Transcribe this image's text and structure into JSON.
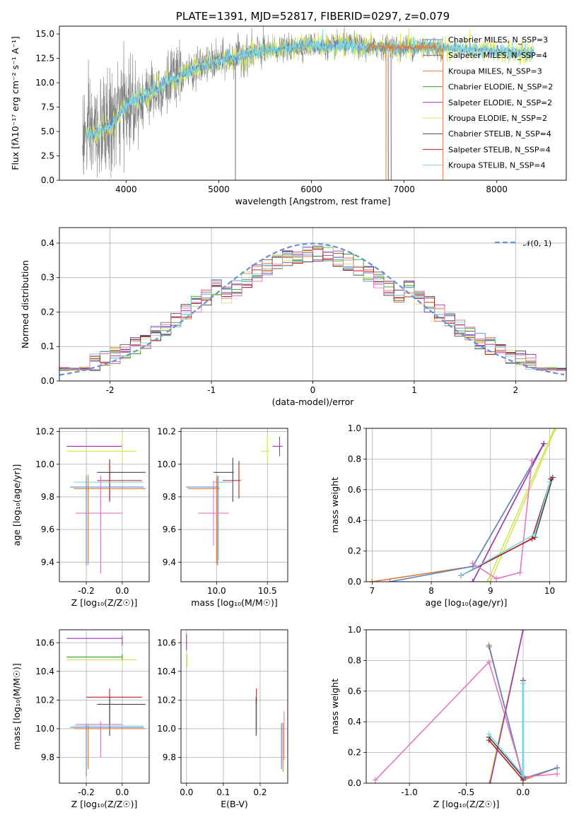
{
  "colors": {
    "chabrier_miles": "#5b86c5",
    "salpeter_miles": "#8c564b",
    "kroupa_miles": "#e07b39",
    "chabrier_elodie": "#2ca02c",
    "salpeter_elodie": "#9b30b0",
    "kroupa_elodie": "#d7e35a",
    "chabrier_stelib": "#444444",
    "salpeter_stelib": "#b22222",
    "kroupa_stelib": "#7fd6e0",
    "pink": "#e377c2",
    "data_gray": "#808080",
    "normal_curve": "#6a8fd6"
  },
  "chart_data": [
    {
      "id": "spectrum",
      "type": "line",
      "title": "PLATE=1391, MJD=52817, FIBERID=0297, z=0.079",
      "xlabel": "wavelength [Angstrom, rest frame]",
      "ylabel": "Flux [fλ10⁻¹⁷ erg cm⁻² s⁻¹ A⁻¹]",
      "xlim": [
        3280,
        8750
      ],
      "ylim": [
        0,
        15.8
      ],
      "xticks": [
        4000,
        5000,
        6000,
        7000,
        8000
      ],
      "yticks": [
        0.0,
        2.5,
        5.0,
        7.5,
        10.0,
        12.5,
        15.0
      ],
      "legend_position": "upper-right",
      "legend": [
        "Chabrier MILES, N_SSP=3",
        "Salpeter MILES, N_SSP=4",
        "Kroupa MILES, N_SSP=3",
        "Chabrier ELODIE, N_SSP=2",
        "Salpeter ELODIE, N_SSP=2",
        "Kroupa ELODIE, N_SSP=2",
        "Chabrier STELIB, N_SSP=4",
        "Salpeter STELIB, N_SSP=4",
        "Kroupa STELIB, N_SSP=4"
      ],
      "continuum": {
        "x": [
          3550,
          3700,
          3850,
          3950,
          4050,
          4200,
          4400,
          4600,
          4800,
          5000,
          5200,
          5400,
          5600,
          5800,
          6000,
          6200,
          6400,
          6600,
          6800,
          7000,
          7200,
          7400,
          7600,
          7800,
          8000,
          8200,
          8400
        ],
        "y": [
          4.5,
          5.0,
          5.8,
          7.2,
          8.0,
          8.6,
          9.8,
          10.8,
          11.7,
          12.2,
          12.7,
          13.1,
          13.4,
          13.6,
          13.9,
          13.7,
          13.9,
          13.6,
          13.7,
          13.6,
          13.7,
          13.6,
          13.4,
          13.3,
          13.2,
          13.1,
          13.0
        ]
      }
    },
    {
      "id": "residuals",
      "type": "histogram",
      "xlabel": "(data-model)/error",
      "ylabel": "Normed distribution",
      "xlim": [
        -2.5,
        2.5
      ],
      "ylim": [
        0,
        0.445
      ],
      "xticks": [
        -2,
        -1,
        0,
        1,
        2
      ],
      "yticks": [
        0.0,
        0.1,
        0.2,
        0.3,
        0.4
      ],
      "legend": [
        "𝒩(0, 1)"
      ],
      "legend_position": "upper-right",
      "bin_width": 0.1
    },
    {
      "id": "age_vs_Z",
      "type": "errorbar",
      "xlabel": "Z [log₁₀(Z/Z☉)]",
      "ylabel": "age  [log₁₀(age/yr)]",
      "xlim": [
        -0.35,
        0.15
      ],
      "ylim": [
        9.28,
        10.22
      ],
      "xticks": [
        -0.2,
        0.0
      ],
      "yticks": [
        9.4,
        9.6,
        9.8,
        10.0,
        10.2
      ],
      "points": [
        {
          "c": "salpeter_elodie",
          "x": 0.0,
          "y": 10.11,
          "xlo": -0.31,
          "xhi": 0.0,
          "ylo": 10.09,
          "yhi": 10.13
        },
        {
          "c": "kroupa_elodie",
          "x": 0.0,
          "y": 10.08,
          "xlo": -0.31,
          "xhi": 0.08,
          "ylo": 10.0,
          "yhi": 10.19
        },
        {
          "c": "chabrier_stelib",
          "x": -0.07,
          "y": 9.95,
          "xlo": -0.14,
          "xhi": 0.13,
          "ylo": 9.78,
          "yhi": 10.03
        },
        {
          "c": "salpeter_stelib",
          "x": -0.07,
          "y": 9.9,
          "xlo": -0.14,
          "xhi": 0.11,
          "ylo": 9.77,
          "yhi": 10.02
        },
        {
          "c": "kroupa_stelib",
          "x": -0.19,
          "y": 9.89,
          "xlo": -0.27,
          "xhi": 0.12,
          "ylo": 9.38,
          "yhi": 9.94
        },
        {
          "c": "chabrier_miles",
          "x": -0.2,
          "y": 9.86,
          "xlo": -0.29,
          "xhi": 0.12,
          "ylo": 9.38,
          "yhi": 9.93
        },
        {
          "c": "kroupa_miles",
          "x": -0.19,
          "y": 9.85,
          "xlo": -0.27,
          "xhi": 0.13,
          "ylo": 9.39,
          "yhi": 9.93
        },
        {
          "c": "pink",
          "x": -0.12,
          "y": 9.7,
          "xlo": -0.26,
          "xhi": 0.0,
          "ylo": 9.33,
          "yhi": 9.93
        }
      ]
    },
    {
      "id": "age_vs_mass",
      "type": "errorbar",
      "xlabel": "mass [log₁₀(M/M☉)]",
      "ylabel": "",
      "xlim": [
        9.65,
        10.7
      ],
      "ylim": [
        9.28,
        10.22
      ],
      "xticks": [
        10.0,
        10.5
      ],
      "yticks": [
        9.4,
        9.6,
        9.8,
        10.0,
        10.2
      ],
      "points": [
        {
          "c": "salpeter_elodie",
          "x": 10.62,
          "y": 10.11,
          "xlo": 10.55,
          "xhi": 10.65,
          "ylo": 10.05,
          "yhi": 10.17
        },
        {
          "c": "kroupa_elodie",
          "x": 10.5,
          "y": 10.08,
          "xlo": 10.44,
          "xhi": 10.52,
          "ylo": 10.01,
          "yhi": 10.18
        },
        {
          "c": "chabrier_stelib",
          "x": 10.16,
          "y": 9.95,
          "xlo": 9.97,
          "xhi": 10.17,
          "ylo": 9.77,
          "yhi": 10.04
        },
        {
          "c": "salpeter_stelib",
          "x": 10.22,
          "y": 9.9,
          "xlo": 10.06,
          "xhi": 10.24,
          "ylo": 9.79,
          "yhi": 10.02
        },
        {
          "c": "kroupa_stelib",
          "x": 10.02,
          "y": 9.89,
          "xlo": 9.97,
          "xhi": 10.15,
          "ylo": 9.41,
          "yhi": 9.93
        },
        {
          "c": "chabrier_miles",
          "x": 10.01,
          "y": 9.86,
          "xlo": 9.7,
          "xhi": 10.02,
          "ylo": 9.38,
          "yhi": 9.93
        },
        {
          "c": "kroupa_miles",
          "x": 10.0,
          "y": 9.85,
          "xlo": 9.72,
          "xhi": 10.03,
          "ylo": 9.39,
          "yhi": 9.92
        },
        {
          "c": "pink",
          "x": 9.97,
          "y": 9.7,
          "xlo": 9.82,
          "xhi": 10.12,
          "ylo": 9.5,
          "yhi": 9.9
        }
      ]
    },
    {
      "id": "weight_vs_age",
      "type": "line",
      "xlabel": "age  [log₁₀(age/yr)]",
      "ylabel": "mass weight",
      "xlim": [
        6.9,
        10.28
      ],
      "ylim": [
        0,
        1.0
      ],
      "xticks": [
        7,
        8,
        9,
        10
      ],
      "yticks": [
        0.0,
        0.2,
        0.4,
        0.6,
        0.8,
        1.0
      ],
      "series": [
        {
          "c": "kroupa_miles",
          "x": [
            7.0,
            8.7,
            9.9
          ],
          "y": [
            0.0,
            0.1,
            0.9
          ]
        },
        {
          "c": "chabrier_miles",
          "x": [
            7.3,
            8.7,
            9.9
          ],
          "y": [
            0.0,
            0.1,
            0.9
          ]
        },
        {
          "c": "salpeter_elodie",
          "x": [
            8.7,
            9.9
          ],
          "y": [
            0.0,
            0.9
          ]
        },
        {
          "c": "kroupa_elodie",
          "x": [
            8.95,
            10.08
          ],
          "y": [
            0.0,
            1.0
          ]
        },
        {
          "c": "kroupa_elodie",
          "x": [
            9.0,
            10.1
          ],
          "y": [
            0.0,
            1.0
          ]
        },
        {
          "c": "pink",
          "x": [
            8.7,
            9.1,
            9.5,
            9.7
          ],
          "y": [
            0.12,
            0.02,
            0.06,
            0.79
          ]
        },
        {
          "c": "chabrier_stelib",
          "x": [
            8.5,
            9.75,
            10.05
          ],
          "y": [
            0.04,
            0.29,
            0.68
          ]
        },
        {
          "c": "salpeter_stelib",
          "x": [
            8.5,
            9.7,
            10.02
          ],
          "y": [
            0.04,
            0.28,
            0.67
          ]
        },
        {
          "c": "kroupa_stelib",
          "x": [
            8.5,
            9.75,
            10.0
          ],
          "y": [
            0.04,
            0.31,
            0.65
          ]
        }
      ]
    },
    {
      "id": "mass_vs_Z",
      "type": "errorbar",
      "xlabel": "Z [log₁₀(Z/Z☉)]",
      "ylabel": "mass [log₁₀(M/M☉)]",
      "xlim": [
        -0.35,
        0.15
      ],
      "ylim": [
        9.62,
        10.69
      ],
      "xticks": [
        -0.2,
        0.0
      ],
      "yticks": [
        9.8,
        10.0,
        10.2,
        10.4,
        10.6
      ],
      "points": [
        {
          "c": "salpeter_elodie",
          "x": 0.0,
          "y": 10.63,
          "xlo": -0.31,
          "xhi": 0.0,
          "ylo": 10.58,
          "yhi": 10.65
        },
        {
          "c": "kroupa_elodie",
          "x": 0.0,
          "y": 10.48,
          "xlo": -0.31,
          "xhi": 0.08,
          "ylo": 10.43,
          "yhi": 10.5
        },
        {
          "c": "chabrier_elodie",
          "x": 0.0,
          "y": 10.5,
          "xlo": -0.31,
          "xhi": 0.0,
          "ylo": 10.48,
          "yhi": 10.52
        },
        {
          "c": "salpeter_stelib",
          "x": -0.07,
          "y": 10.22,
          "xlo": -0.2,
          "xhi": 0.11,
          "ylo": 10.0,
          "yhi": 10.28
        },
        {
          "c": "chabrier_stelib",
          "x": -0.07,
          "y": 10.17,
          "xlo": -0.14,
          "xhi": 0.13,
          "ylo": 9.95,
          "yhi": 10.22
        },
        {
          "c": "pink",
          "x": -0.12,
          "y": 10.03,
          "xlo": -0.26,
          "xhi": 0.0,
          "ylo": 9.8,
          "yhi": 10.05
        },
        {
          "c": "kroupa_stelib",
          "x": -0.19,
          "y": 10.02,
          "xlo": -0.27,
          "xhi": 0.12,
          "ylo": 9.73,
          "yhi": 10.04
        },
        {
          "c": "chabrier_miles",
          "x": -0.2,
          "y": 10.01,
          "xlo": -0.29,
          "xhi": 0.12,
          "ylo": 9.67,
          "yhi": 10.03
        },
        {
          "c": "kroupa_miles",
          "x": -0.19,
          "y": 10.0,
          "xlo": -0.27,
          "xhi": 0.13,
          "ylo": 9.72,
          "yhi": 10.02
        }
      ]
    },
    {
      "id": "mass_vs_ebv",
      "type": "errorbar",
      "xlabel": "E(B-V)",
      "ylabel": "",
      "xlim": [
        -0.015,
        0.275
      ],
      "ylim": [
        9.62,
        10.69
      ],
      "xticks": [
        0.0,
        0.1,
        0.2
      ],
      "yticks": [
        9.8,
        10.0,
        10.2,
        10.4,
        10.6
      ],
      "points": [
        {
          "c": "salpeter_elodie",
          "x": 0.0,
          "y": 10.61,
          "xlo": 0.0,
          "xhi": 0.0,
          "ylo": 10.55,
          "yhi": 10.66
        },
        {
          "c": "kroupa_elodie",
          "x": 0.002,
          "y": 10.48,
          "xlo": 0.002,
          "xhi": 0.002,
          "ylo": 10.43,
          "yhi": 10.52
        },
        {
          "c": "salpeter_stelib",
          "x": 0.19,
          "y": 10.2,
          "xlo": 0.19,
          "xhi": 0.19,
          "ylo": 10.0,
          "yhi": 10.28
        },
        {
          "c": "chabrier_stelib",
          "x": 0.189,
          "y": 10.15,
          "xlo": 0.189,
          "xhi": 0.189,
          "ylo": 9.95,
          "yhi": 10.22
        },
        {
          "c": "kroupa_stelib",
          "x": 0.191,
          "y": 10.05,
          "xlo": 0.191,
          "xhi": 0.191,
          "ylo": 9.96,
          "yhi": 10.18
        },
        {
          "c": "pink",
          "x": 0.265,
          "y": 9.98,
          "xlo": 0.265,
          "xhi": 0.265,
          "ylo": 9.78,
          "yhi": 10.12
        },
        {
          "c": "chabrier_miles",
          "x": 0.258,
          "y": 9.92,
          "xlo": 0.258,
          "xhi": 0.258,
          "ylo": 9.72,
          "yhi": 10.04
        },
        {
          "c": "kroupa_miles",
          "x": 0.262,
          "y": 9.9,
          "xlo": 0.262,
          "xhi": 0.262,
          "ylo": 9.7,
          "yhi": 10.04
        }
      ]
    },
    {
      "id": "weight_vs_Z",
      "type": "line",
      "xlabel": "Z [log₁₀(Z/Z☉)]",
      "ylabel": "mass weight",
      "xlim": [
        -1.38,
        0.38
      ],
      "ylim": [
        0,
        1.0
      ],
      "xticks": [
        -1.0,
        -0.5,
        0.0
      ],
      "yticks": [
        0.0,
        0.2,
        0.4,
        0.6,
        0.8,
        1.0
      ],
      "series": [
        {
          "c": "kroupa_miles",
          "x": [
            -0.3,
            0.0,
            0.3
          ],
          "y": [
            0.9,
            0.02,
            0.1
          ]
        },
        {
          "c": "chabrier_miles",
          "x": [
            -0.3,
            0.0,
            0.3
          ],
          "y": [
            0.89,
            0.03,
            0.1
          ]
        },
        {
          "c": "pink",
          "x": [
            -1.3,
            -0.3,
            0.0,
            0.3
          ],
          "y": [
            0.02,
            0.79,
            0.04,
            0.06
          ]
        },
        {
          "c": "kroupa_elodie",
          "x": [
            -0.3,
            0.0
          ],
          "y": [
            0.0,
            1.0
          ]
        },
        {
          "c": "salpeter_elodie",
          "x": [
            -0.29,
            0.0
          ],
          "y": [
            0.0,
            1.0
          ]
        },
        {
          "c": "salpeter_stelib",
          "x": [
            -0.3,
            0.0,
            0.0
          ],
          "y": [
            0.28,
            0.02,
            0.67
          ]
        },
        {
          "c": "chabrier_stelib",
          "x": [
            -0.3,
            0.0
          ],
          "y": [
            0.3,
            0.04
          ]
        },
        {
          "c": "kroupa_stelib",
          "x": [
            -0.3,
            0.0,
            0.0
          ],
          "y": [
            0.32,
            0.05,
            0.65
          ]
        }
      ]
    }
  ]
}
